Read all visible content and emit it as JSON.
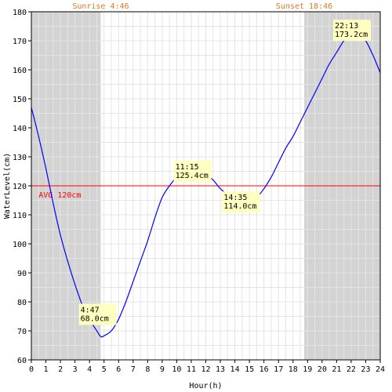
{
  "chart_data": {
    "type": "line",
    "title": "",
    "xlabel": "Hour(h)",
    "ylabel": "WaterLevel(cm)",
    "xlim": [
      0,
      24
    ],
    "ylim": [
      60,
      180
    ],
    "xticks": [
      "0",
      "1",
      "2",
      "3",
      "4",
      "5",
      "6",
      "7",
      "8",
      "9",
      "10",
      "11",
      "12",
      "13",
      "14",
      "15",
      "16",
      "17",
      "18",
      "19",
      "20",
      "21",
      "22",
      "23",
      "24"
    ],
    "yticks": [
      "60",
      "70",
      "80",
      "90",
      "100",
      "110",
      "120",
      "130",
      "140",
      "150",
      "160",
      "170",
      "180"
    ],
    "grid": true,
    "night_bands": [
      [
        0,
        4.77
      ],
      [
        18.77,
        24
      ]
    ],
    "sunrise_label": "Sunrise 4:46",
    "sunset_label": "Sunset 18:46",
    "average": {
      "value": 120,
      "label": "AVG 120cm"
    },
    "series": [
      {
        "x": [
          0,
          0.5,
          1,
          1.5,
          2,
          2.5,
          3,
          3.5,
          4,
          4.5,
          4.78,
          5,
          5.5,
          6,
          6.5,
          7,
          7.5,
          8,
          8.5,
          9,
          9.5,
          10,
          10.5,
          11,
          11.25,
          11.5,
          12,
          12.5,
          13,
          13.5,
          14,
          14.58,
          15,
          15.5,
          16,
          16.5,
          17,
          17.5,
          18,
          18.5,
          19,
          19.5,
          20,
          20.5,
          21,
          21.5,
          22,
          22.22,
          22.5,
          23,
          23.5,
          24
        ],
        "y": [
          147,
          137,
          126,
          114,
          103,
          94,
          86,
          79,
          74,
          70,
          68,
          68.3,
          70,
          74,
          80,
          87,
          94,
          101,
          109,
          116,
          120,
          123,
          125,
          125.3,
          125.4,
          125,
          124,
          122,
          119,
          117,
          115,
          114,
          114.5,
          116,
          119,
          123,
          128,
          133,
          137,
          142,
          147,
          152,
          157,
          162,
          166,
          170,
          172.5,
          173.2,
          172.5,
          170,
          165,
          159
        ]
      }
    ],
    "annotations": [
      {
        "x": 4.78,
        "y": 68.0,
        "time": "4:47",
        "value": "68.0cm"
      },
      {
        "x": 11.25,
        "y": 125.4,
        "time": "11:15",
        "value": "125.4cm"
      },
      {
        "x": 14.58,
        "y": 114.0,
        "time": "14:35",
        "value": "114.0cm"
      },
      {
        "x": 22.22,
        "y": 173.2,
        "time": "22:13",
        "value": "173.2cm"
      }
    ],
    "colors": {
      "line": "#0000ff",
      "average": "#ff0000",
      "night_band": "#d3d3d3",
      "grid": "#e4e4e4",
      "sun_label": "#e07820",
      "annotation_bg": "#ffffc0",
      "axis": "#000000"
    }
  }
}
